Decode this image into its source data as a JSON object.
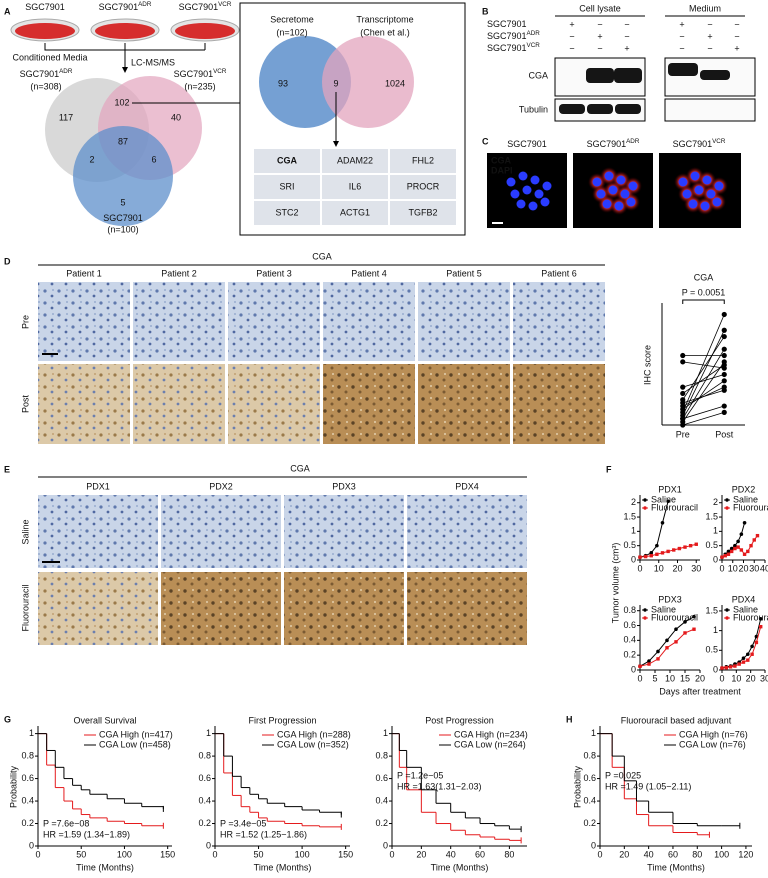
{
  "panel_labels": [
    "A",
    "B",
    "C",
    "D",
    "E",
    "F",
    "G",
    "H"
  ],
  "a": {
    "dishes": [
      {
        "text": "SGC7901"
      },
      {
        "text": "SGC7901",
        "sup": "ADR"
      },
      {
        "text": "SGC7901",
        "sup": "VCR"
      }
    ],
    "conditioned_media": "Conditioned Media",
    "lcms": "LC-MS/MS",
    "venn": {
      "sets": [
        {
          "name": {
            "text": "SGC7901",
            "sup": "ADR"
          },
          "n": "(n=308)"
        },
        {
          "name": {
            "text": "SGC7901",
            "sup": "VCR"
          },
          "n": "(n=235)"
        },
        {
          "name": {
            "text": "SGC7901"
          },
          "n": "(n=100)"
        }
      ],
      "regions": {
        "adr_only": 117,
        "adr_vcr": 102,
        "vcr_only": 40,
        "all": 87,
        "adr_wt": 2,
        "vcr_wt": 6,
        "wt_only": 5
      }
    },
    "box": {
      "secretome": "Secretome",
      "secretome_n": "(n=102)",
      "transcriptome": "Transcriptome",
      "transcriptome_ref": "(Chen et al.)",
      "regions": [
        93,
        9,
        1024
      ],
      "genes": [
        [
          "CGA",
          "ADAM22",
          "FHL2"
        ],
        [
          "SRI",
          "IL6",
          "PROCR"
        ],
        [
          "STC2",
          "ACTG1",
          "TGFB2"
        ]
      ]
    }
  },
  "b": {
    "headers": [
      "Cell lysate",
      "Medium"
    ],
    "rows": [
      {
        "text": "SGC7901"
      },
      {
        "text": "SGC7901",
        "sup": "ADR"
      },
      {
        "text": "SGC7901",
        "sup": "VCR"
      }
    ],
    "signs": [
      [
        "+",
        "−",
        "−",
        "+",
        "−",
        "−"
      ],
      [
        "−",
        "+",
        "−",
        "−",
        "+",
        "−"
      ],
      [
        "−",
        "−",
        "+",
        "−",
        "−",
        "+"
      ]
    ],
    "proteins": [
      "CGA",
      "Tubulin"
    ]
  },
  "c": {
    "columns": [
      {
        "text": "SGC7901"
      },
      {
        "text": "SGC7901",
        "sup": "ADR"
      },
      {
        "text": "SGC7901",
        "sup": "VCR"
      }
    ],
    "stains": [
      "CGA",
      "DAPI"
    ]
  },
  "d": {
    "title": "CGA",
    "patients": [
      "Patient 1",
      "Patient 2",
      "Patient 3",
      "Patient 4",
      "Patient 5",
      "Patient 6"
    ],
    "rows": [
      "Pre",
      "Post"
    ]
  },
  "e": {
    "title": "CGA",
    "models": [
      "PDX1",
      "PDX2",
      "PDX3",
      "PDX4"
    ],
    "rows": [
      "Saline",
      "Fluorouracil"
    ]
  },
  "f": {
    "ylabel": "Tumor volume (cm³)",
    "xlabel": "Days after treatment"
  },
  "chart_data": [
    {
      "type": "paired",
      "title": "CGA",
      "ylabel": "IHC score",
      "categories": [
        "Pre",
        "Post"
      ],
      "color": "#000000",
      "pairs": [
        [
          20,
          175
        ],
        [
          15,
          150
        ],
        [
          10,
          120
        ],
        [
          5,
          100
        ],
        [
          60,
          80
        ],
        [
          100,
          90
        ],
        [
          110,
          110
        ],
        [
          30,
          60
        ],
        [
          40,
          140
        ],
        [
          25,
          70
        ],
        [
          10,
          30
        ],
        [
          50,
          95
        ],
        [
          0,
          20
        ],
        [
          35,
          55
        ]
      ],
      "ylim": [
        0,
        190
      ],
      "annotations": [
        "P = 0.0051"
      ]
    },
    {
      "type": "line",
      "title": "PDX1",
      "xlim": [
        0,
        32
      ],
      "ylim": [
        0,
        2.2
      ],
      "xticks": [
        0,
        10,
        20,
        30
      ],
      "yticks": [
        0,
        0.5,
        1,
        1.5,
        2
      ],
      "legend": "upper left",
      "series": [
        {
          "name": "Saline",
          "color": "#000000",
          "x": [
            0,
            3,
            6,
            9,
            12,
            15
          ],
          "values": [
            0.1,
            0.15,
            0.25,
            0.5,
            1.3,
            2.05
          ]
        },
        {
          "name": "Fluorouracil",
          "color": "#e41a1c",
          "x": [
            0,
            3,
            6,
            9,
            12,
            15,
            18,
            21,
            24,
            27,
            30
          ],
          "values": [
            0.1,
            0.12,
            0.15,
            0.2,
            0.25,
            0.3,
            0.35,
            0.4,
            0.45,
            0.5,
            0.55
          ]
        }
      ]
    },
    {
      "type": "line",
      "title": "PDX2",
      "xlim": [
        0,
        40
      ],
      "ylim": [
        0,
        2.2
      ],
      "xticks": [
        0,
        10,
        20,
        30,
        40
      ],
      "yticks": [
        0,
        0.5,
        1,
        1.5,
        2
      ],
      "legend": "upper left",
      "series": [
        {
          "name": "Saline",
          "color": "#000000",
          "x": [
            0,
            3,
            6,
            9,
            12,
            15,
            18,
            21
          ],
          "values": [
            0.1,
            0.2,
            0.3,
            0.4,
            0.5,
            0.65,
            0.9,
            1.3
          ]
        },
        {
          "name": "Fluorouracil",
          "color": "#e41a1c",
          "x": [
            0,
            3,
            6,
            9,
            12,
            15,
            18,
            21,
            24,
            27,
            30,
            33
          ],
          "values": [
            0.1,
            0.15,
            0.2,
            0.3,
            0.4,
            0.45,
            0.35,
            0.2,
            0.3,
            0.5,
            0.7,
            0.85
          ]
        }
      ]
    },
    {
      "type": "line",
      "title": "PDX3",
      "xlim": [
        0,
        20
      ],
      "ylim": [
        0,
        0.85
      ],
      "xticks": [
        0,
        5,
        10,
        15,
        20
      ],
      "yticks": [
        0,
        0.2,
        0.4,
        0.6,
        0.8
      ],
      "legend": "upper left",
      "series": [
        {
          "name": "Saline",
          "color": "#000000",
          "x": [
            0,
            3,
            6,
            9,
            12,
            15,
            18
          ],
          "values": [
            0.05,
            0.12,
            0.25,
            0.4,
            0.55,
            0.65,
            0.72
          ]
        },
        {
          "name": "Fluorouracil",
          "color": "#e41a1c",
          "x": [
            0,
            3,
            6,
            9,
            12,
            15,
            18
          ],
          "values": [
            0.05,
            0.08,
            0.15,
            0.3,
            0.38,
            0.5,
            0.55
          ]
        }
      ]
    },
    {
      "type": "line",
      "title": "PDX4",
      "xlim": [
        0,
        30
      ],
      "ylim": [
        0,
        1.6
      ],
      "xticks": [
        0,
        10,
        20,
        30
      ],
      "yticks": [
        0,
        0.5,
        1,
        1.5
      ],
      "legend": "upper left",
      "series": [
        {
          "name": "Saline",
          "color": "#000000",
          "x": [
            0,
            3,
            6,
            9,
            12,
            15,
            18,
            21,
            24,
            27
          ],
          "values": [
            0.05,
            0.08,
            0.1,
            0.15,
            0.2,
            0.3,
            0.4,
            0.6,
            0.85,
            1.3
          ]
        },
        {
          "name": "Fluorouracil",
          "color": "#e41a1c",
          "x": [
            0,
            3,
            6,
            9,
            12,
            15,
            18,
            21,
            24,
            27
          ],
          "values": [
            0.05,
            0.06,
            0.08,
            0.1,
            0.15,
            0.2,
            0.25,
            0.4,
            0.7,
            1.1
          ]
        }
      ]
    },
    {
      "type": "step",
      "title": "Overall Survival",
      "ylabel": "Probability",
      "xlabel": "Time (Months)",
      "xlim": [
        0,
        155
      ],
      "ylim": [
        0,
        1.05
      ],
      "xticks": [
        0,
        50,
        100,
        150
      ],
      "yticks": [
        0,
        0.2,
        0.4,
        0.6,
        0.8,
        1
      ],
      "legend": "upper right",
      "annotation_position": "lower left",
      "series": [
        {
          "name": "CGA High (n=417)",
          "color": "#e41a1c",
          "x": [
            0,
            10,
            20,
            30,
            40,
            50,
            60,
            80,
            100,
            120,
            145
          ],
          "values": [
            1,
            0.72,
            0.52,
            0.4,
            0.33,
            0.28,
            0.25,
            0.22,
            0.2,
            0.18,
            0.18
          ]
        },
        {
          "name": "CGA Low (n=458)",
          "color": "#000000",
          "x": [
            0,
            10,
            20,
            30,
            40,
            50,
            60,
            80,
            100,
            120,
            145
          ],
          "values": [
            1,
            0.85,
            0.7,
            0.6,
            0.54,
            0.5,
            0.46,
            0.42,
            0.38,
            0.35,
            0.33
          ]
        }
      ],
      "annotations": [
        "P =7.6e−08",
        "HR =1.59 (1.34−1.89)"
      ]
    },
    {
      "type": "step",
      "title": "First Progression",
      "xlabel": "Time (Months)",
      "xlim": [
        0,
        155
      ],
      "ylim": [
        0,
        1.05
      ],
      "xticks": [
        0,
        50,
        100,
        150
      ],
      "yticks": [
        0,
        0.2,
        0.4,
        0.6,
        0.8,
        1
      ],
      "legend": "upper right",
      "annotation_position": "lower left",
      "series": [
        {
          "name": "CGA High (n=288)",
          "color": "#e41a1c",
          "x": [
            0,
            10,
            20,
            30,
            40,
            50,
            60,
            80,
            100,
            120,
            145
          ],
          "values": [
            1,
            0.65,
            0.45,
            0.35,
            0.3,
            0.25,
            0.22,
            0.2,
            0.18,
            0.17,
            0.17
          ]
        },
        {
          "name": "CGA Low (n=352)",
          "color": "#000000",
          "x": [
            0,
            10,
            20,
            30,
            40,
            50,
            60,
            80,
            100,
            120,
            145
          ],
          "values": [
            1,
            0.8,
            0.62,
            0.52,
            0.46,
            0.42,
            0.38,
            0.35,
            0.32,
            0.3,
            0.28
          ]
        }
      ],
      "annotations": [
        "P =3.4e−05",
        "HR =1.52 (1.25−1.86)"
      ]
    },
    {
      "type": "step",
      "title": "Post Progression",
      "xlabel": "Time (Months)",
      "xlim": [
        0,
        92
      ],
      "ylim": [
        0,
        1.05
      ],
      "xticks": [
        0,
        20,
        40,
        60,
        80
      ],
      "yticks": [
        0,
        0.2,
        0.4,
        0.6,
        0.8,
        1
      ],
      "legend": "upper right",
      "annotation_position": "middle left",
      "series": [
        {
          "name": "CGA High (n=234)",
          "color": "#e41a1c",
          "x": [
            0,
            5,
            10,
            20,
            30,
            40,
            50,
            60,
            70,
            80,
            88
          ],
          "values": [
            1,
            0.7,
            0.5,
            0.3,
            0.2,
            0.14,
            0.1,
            0.08,
            0.06,
            0.05,
            0.05
          ]
        },
        {
          "name": "CGA Low (n=264)",
          "color": "#000000",
          "x": [
            0,
            5,
            10,
            20,
            30,
            40,
            50,
            60,
            70,
            80,
            88
          ],
          "values": [
            1,
            0.85,
            0.7,
            0.5,
            0.38,
            0.3,
            0.25,
            0.2,
            0.18,
            0.15,
            0.15
          ]
        }
      ],
      "annotations": [
        "P =1.2e−05",
        "HR =1.63(1.31−2.03)"
      ]
    },
    {
      "type": "step",
      "title": "Fluorouracil based adjuvant",
      "ylabel": "Probability",
      "xlabel": "Time (Months)",
      "xlim": [
        0,
        125
      ],
      "ylim": [
        0,
        1.05
      ],
      "xticks": [
        0,
        20,
        40,
        60,
        80,
        100,
        120
      ],
      "yticks": [
        0,
        0.2,
        0.4,
        0.6,
        0.8,
        1
      ],
      "legend": "upper right",
      "annotation_position": "middle left",
      "series": [
        {
          "name": "CGA High (n=76)",
          "color": "#e41a1c",
          "x": [
            0,
            10,
            20,
            30,
            40,
            60,
            80,
            90
          ],
          "values": [
            1,
            0.7,
            0.42,
            0.28,
            0.18,
            0.12,
            0.1,
            0.1
          ]
        },
        {
          "name": "CGA Low (n=76)",
          "color": "#000000",
          "x": [
            0,
            10,
            20,
            30,
            40,
            60,
            80,
            100,
            115
          ],
          "values": [
            1,
            0.8,
            0.58,
            0.4,
            0.3,
            0.2,
            0.18,
            0.18,
            0.18
          ]
        }
      ],
      "annotations": [
        "P =0.025",
        "HR =1.49 (1.05−2.11)"
      ]
    }
  ]
}
